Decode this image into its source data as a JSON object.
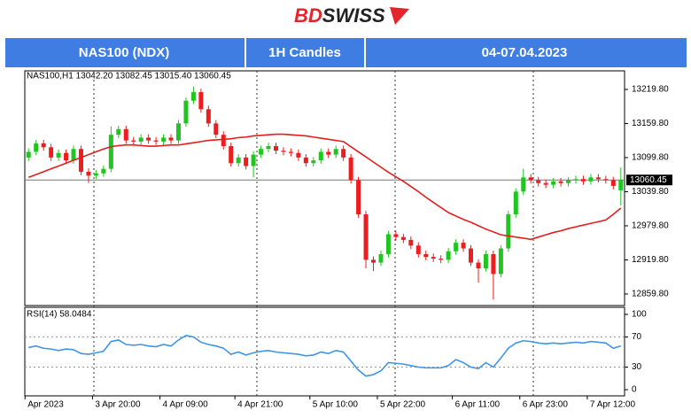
{
  "header": {
    "logo": [
      "BD",
      "SWISS"
    ],
    "cells": [
      "NAS100 (NDX)",
      "1H Candles",
      "04-07.04.2023"
    ]
  },
  "chart_data": {
    "type": "candlestick",
    "info": "NAS100,H1  13042.20 13082.45 13015.40 13060.45",
    "categories": [
      "Apr 2023",
      null,
      null,
      null,
      null,
      null,
      null,
      null,
      null,
      "3 Apr 20:00",
      null,
      null,
      null,
      null,
      null,
      null,
      null,
      null,
      "4 Apr 09:00",
      null,
      null,
      null,
      null,
      null,
      null,
      null,
      null,
      null,
      "4 Apr 21:00",
      null,
      null,
      null,
      null,
      null,
      null,
      null,
      null,
      null,
      "5 Apr 10:00",
      null,
      null,
      null,
      null,
      null,
      null,
      null,
      null,
      "5 Apr 22:00",
      null,
      null,
      null,
      null,
      null,
      null,
      null,
      null,
      null,
      "6 Apr 11:00",
      null,
      null,
      null,
      null,
      null,
      null,
      null,
      null,
      "6 Apr 23:00",
      null,
      null,
      null,
      null,
      null,
      null,
      null,
      null,
      "7 Apr 12:00",
      null,
      null,
      null,
      null
    ],
    "open": [
      13100,
      13110,
      13125,
      13118,
      13100,
      13108,
      13095,
      13115,
      13075,
      13068,
      13072,
      13080,
      13140,
      13150,
      13130,
      13128,
      13135,
      13130,
      13128,
      13135,
      13130,
      13160,
      13200,
      13215,
      13185,
      13160,
      13140,
      13120,
      13090,
      13100,
      13085,
      13105,
      13115,
      13120,
      13112,
      13110,
      13108,
      13100,
      13090,
      13095,
      13110,
      13105,
      13115,
      13100,
      13060,
      13000,
      12920,
      12915,
      12930,
      12965,
      12960,
      12955,
      12945,
      12930,
      12925,
      12922,
      12920,
      12935,
      12950,
      12940,
      12915,
      12905,
      12930,
      12895,
      12940,
      13000,
      13040,
      13065,
      13060,
      13055,
      13052,
      13058,
      13055,
      13060,
      13062,
      13058,
      13065,
      13062,
      13060,
      13042.2
    ],
    "high": [
      13116,
      13131,
      13131,
      13124,
      13114,
      13114,
      13121,
      13121,
      13081,
      13078,
      13086,
      13155,
      13156,
      13156,
      13136,
      13141,
      13141,
      13136,
      13141,
      13141,
      13166,
      13206,
      13225,
      13221,
      13191,
      13166,
      13146,
      13126,
      13106,
      13106,
      13111,
      13121,
      13126,
      13126,
      13118,
      13116,
      13114,
      13106,
      13101,
      13116,
      13116,
      13121,
      13121,
      13106,
      13066,
      13006,
      12926,
      12936,
      12971,
      12971,
      12966,
      12961,
      12951,
      12936,
      12931,
      12928,
      12941,
      12956,
      12956,
      12946,
      12921,
      12936,
      12936,
      12946,
      13006,
      13046,
      13080,
      13071,
      13066,
      13061,
      13064,
      13064,
      13066,
      13068,
      13068,
      13071,
      13071,
      13068,
      13066,
      13082.45
    ],
    "low": [
      13094,
      13104,
      13112,
      13094,
      13094,
      13089,
      13089,
      13069,
      13055,
      13062,
      13066,
      13074,
      13134,
      13124,
      13122,
      13122,
      13124,
      13122,
      13122,
      13124,
      13124,
      13154,
      13194,
      13179,
      13154,
      13134,
      13114,
      13084,
      13084,
      13079,
      13065,
      13099,
      13109,
      13106,
      13104,
      13102,
      13094,
      13084,
      13084,
      13089,
      13099,
      13099,
      13094,
      13054,
      12994,
      12905,
      12900,
      12909,
      12924,
      12954,
      12949,
      12939,
      12924,
      12919,
      12916,
      12914,
      12914,
      12929,
      12934,
      12909,
      12880,
      12899,
      12850,
      12889,
      12934,
      12994,
      13034,
      13054,
      13049,
      13046,
      13046,
      13049,
      13049,
      13054,
      13052,
      13052,
      13056,
      13054,
      13044,
      13015.4
    ],
    "close": [
      13110,
      13125,
      13118,
      13100,
      13108,
      13095,
      13115,
      13075,
      13068,
      13072,
      13080,
      13140,
      13150,
      13130,
      13128,
      13135,
      13130,
      13128,
      13135,
      13130,
      13160,
      13200,
      13215,
      13185,
      13160,
      13140,
      13120,
      13090,
      13100,
      13085,
      13105,
      13115,
      13120,
      13112,
      13110,
      13108,
      13100,
      13090,
      13095,
      13110,
      13105,
      13115,
      13100,
      13060,
      13000,
      12920,
      12915,
      12930,
      12965,
      12960,
      12955,
      12945,
      12930,
      12925,
      12922,
      12920,
      12935,
      12950,
      12940,
      12915,
      12905,
      12930,
      12895,
      12940,
      13000,
      13040,
      13065,
      13060,
      13055,
      13052,
      13058,
      13055,
      13060,
      13062,
      13058,
      13065,
      13062,
      13060,
      13050,
      13060.45
    ],
    "up_color": "#22c422",
    "down_color": "#ee1c1c",
    "ylim": [
      12839.5,
      13252.5
    ],
    "yticks": [
      {
        "value": 12859.8,
        "label": "12859.80"
      },
      {
        "value": 12919.8,
        "label": "12919.80"
      },
      {
        "value": 12979.8,
        "label": "12979.80"
      },
      {
        "value": 13039.8,
        "label": "13039.80"
      },
      {
        "value": 13099.8,
        "label": "13099.80"
      },
      {
        "value": 13159.8,
        "label": "13159.80"
      },
      {
        "value": 13219.8,
        "label": "13219.80"
      }
    ],
    "last_price": {
      "value": 13060.45,
      "label": "13060.45"
    },
    "ma": {
      "color": "#e41e1e",
      "values": [
        13065,
        13070,
        13075,
        13080,
        13085,
        13090,
        13095,
        13100,
        13105,
        13110,
        13115,
        13119,
        13121,
        13122,
        13122,
        13121,
        13120,
        13120,
        13121,
        13122,
        13122,
        13124,
        13126,
        13128,
        13130,
        13131,
        13132,
        13133,
        13135,
        13136,
        13138,
        13139,
        13140,
        13141,
        13141,
        13140,
        13139,
        13138,
        13136,
        13134,
        13132,
        13130,
        13128,
        13119,
        13110,
        13101,
        13092,
        13083,
        13074,
        13066,
        13058,
        13049,
        13040,
        13030,
        13021,
        13012,
        13003,
        12997,
        12991,
        12986,
        12980,
        12974,
        12969,
        12964,
        12962,
        12960,
        12958,
        12956,
        12960,
        12964,
        12968,
        12971,
        12975,
        12978,
        12981,
        12984,
        12987,
        12990,
        13000,
        13011
      ]
    },
    "rsi": {
      "title": "RSI(14) 58.0484",
      "color": "#3d96e6",
      "ylim": [
        -8.2,
        109.4
      ],
      "yticks": [
        0,
        30,
        70,
        100
      ],
      "levels": [
        30,
        70
      ],
      "values": [
        56,
        58,
        55,
        54,
        52,
        54,
        53,
        48,
        47,
        49,
        51,
        64,
        66,
        60,
        59,
        60,
        58,
        57,
        60,
        58,
        66,
        72,
        70,
        63,
        60,
        58,
        55,
        47,
        50,
        46,
        49,
        51,
        52,
        50,
        49,
        48,
        47,
        45,
        46,
        50,
        48,
        52,
        50,
        38,
        26,
        18,
        20,
        25,
        36,
        35,
        34,
        32,
        30,
        29,
        29,
        29,
        32,
        40,
        36,
        30,
        28,
        36,
        30,
        42,
        55,
        62,
        65,
        64,
        62,
        61,
        62,
        61,
        62,
        63,
        62,
        64,
        63,
        62,
        55,
        58.0484
      ]
    }
  }
}
